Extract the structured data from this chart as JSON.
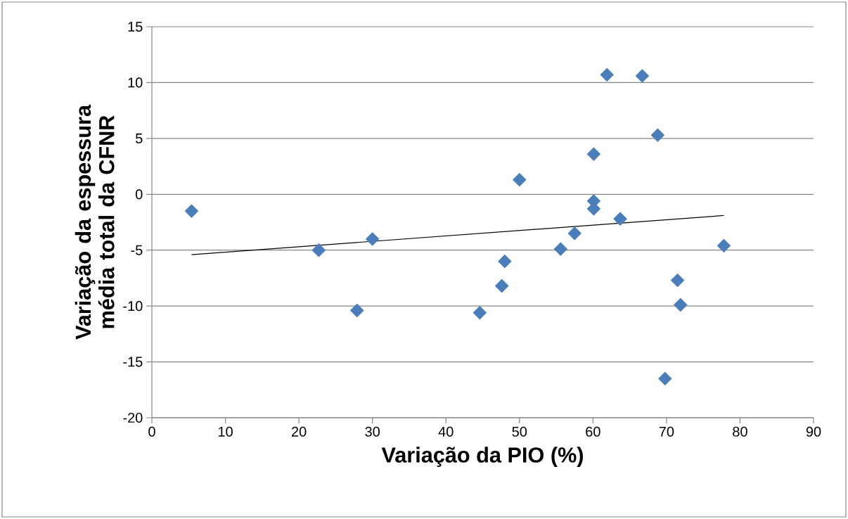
{
  "chart_data": {
    "type": "scatter",
    "xlabel": "Variação da PIO (%)",
    "ylabel": "Variação da espessura média total da CFNR",
    "xlim": [
      0,
      90
    ],
    "xticks": [
      0,
      10,
      20,
      30,
      40,
      50,
      60,
      70,
      80,
      90
    ],
    "ylim": [
      -20,
      15
    ],
    "yticks": [
      -20,
      -15,
      -10,
      -5,
      0,
      5,
      10,
      15
    ],
    "grid": "y",
    "series": [
      {
        "marker": "diamond",
        "color": "#4a7ebb",
        "x": [
          5.4,
          22.7,
          27.9,
          30.0,
          44.6,
          47.6,
          48.0,
          50.0,
          55.6,
          57.5,
          60.1,
          60.1,
          60.1,
          61.9,
          63.7,
          66.7,
          68.8,
          69.8,
          71.5,
          71.9,
          77.8
        ],
        "values": [
          -1.5,
          -5.0,
          -10.4,
          -4.0,
          -10.6,
          -8.2,
          -6.0,
          1.3,
          -4.9,
          -3.5,
          -0.6,
          -1.3,
          3.6,
          10.7,
          -2.2,
          10.6,
          5.3,
          -16.5,
          -7.7,
          -9.9,
          -4.6
        ]
      },
      {
        "type": "line",
        "marker": "none",
        "color": "#000000",
        "x": [
          5.4,
          77.8
        ],
        "values": [
          -5.4,
          -1.9
        ]
      }
    ]
  }
}
